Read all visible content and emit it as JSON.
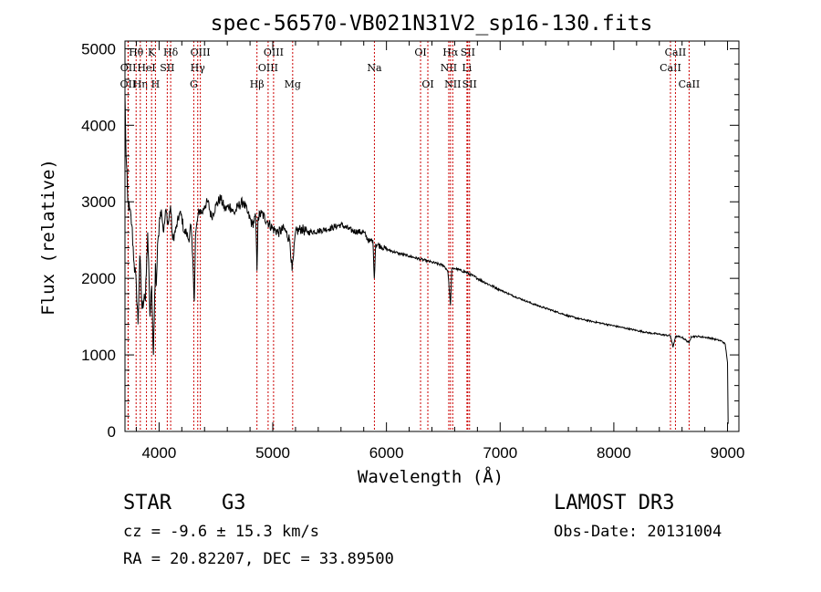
{
  "colors": {
    "line": "#000000",
    "marker": "#cc0000",
    "background": "#ffffff"
  },
  "chart_data": {
    "type": "line",
    "title": "spec-56570-VB021N31V2_sp16-130.fits",
    "xlabel": "Wavelength (Å)",
    "ylabel": "Flux (relative)",
    "xlim": [
      3700,
      9100
    ],
    "ylim": [
      0,
      5100
    ],
    "xticks": [
      4000,
      5000,
      6000,
      7000,
      8000,
      9000
    ],
    "xtick_labels": [
      "4000",
      "5000",
      "6000",
      "7000",
      "8000",
      "9000"
    ],
    "yticks": [
      0,
      1000,
      2000,
      3000,
      4000,
      5000
    ],
    "ytick_labels": [
      "0",
      "1000",
      "2000",
      "3000",
      "4000",
      "5000"
    ],
    "series": [
      {
        "name": "spectrum",
        "x": [
          3700,
          3710,
          3725,
          3740,
          3760,
          3780,
          3800,
          3815,
          3830,
          3850,
          3870,
          3880,
          3900,
          3920,
          3935,
          3950,
          3968,
          3975,
          3990,
          4005,
          4020,
          4040,
          4060,
          4080,
          4100,
          4120,
          4150,
          4180,
          4200,
          4220,
          4240,
          4260,
          4280,
          4300,
          4310,
          4320,
          4340,
          4360,
          4380,
          4400,
          4430,
          4460,
          4500,
          4540,
          4580,
          4620,
          4660,
          4700,
          4740,
          4780,
          4820,
          4850,
          4861,
          4870,
          4900,
          4950,
          5000,
          5050,
          5100,
          5150,
          5170,
          5183,
          5200,
          5250,
          5300,
          5400,
          5500,
          5600,
          5700,
          5800,
          5850,
          5880,
          5893,
          5905,
          5950,
          6000,
          6100,
          6200,
          6300,
          6400,
          6500,
          6540,
          6563,
          6575,
          6600,
          6700,
          6800,
          6900,
          7000,
          7100,
          7200,
          7300,
          7400,
          7500,
          7600,
          7700,
          7800,
          7900,
          8000,
          8100,
          8200,
          8300,
          8400,
          8498,
          8520,
          8542,
          8560,
          8600,
          8662,
          8680,
          8750,
          8800,
          8850,
          8900,
          8950,
          8980,
          9000,
          9005
        ],
        "y": [
          4400,
          3600,
          3000,
          2900,
          2700,
          2200,
          1900,
          1400,
          2300,
          1600,
          1800,
          1700,
          2600,
          1500,
          1900,
          1000,
          2200,
          1900,
          2500,
          2800,
          2900,
          2600,
          2900,
          2700,
          2950,
          2500,
          2650,
          2850,
          2800,
          2600,
          2600,
          2500,
          2700,
          2100,
          1700,
          2550,
          2800,
          2900,
          2850,
          2950,
          3000,
          2800,
          2950,
          3050,
          2900,
          2950,
          2850,
          2950,
          3000,
          2850,
          2700,
          2800,
          2100,
          2800,
          2850,
          2750,
          2650,
          2600,
          2650,
          2500,
          2100,
          2300,
          2600,
          2650,
          2600,
          2620,
          2650,
          2700,
          2620,
          2600,
          2480,
          2500,
          2000,
          2450,
          2420,
          2380,
          2330,
          2290,
          2250,
          2210,
          2170,
          2100,
          1650,
          2120,
          2130,
          2080,
          2000,
          1920,
          1850,
          1780,
          1720,
          1660,
          1610,
          1560,
          1510,
          1470,
          1440,
          1410,
          1380,
          1350,
          1320,
          1290,
          1270,
          1250,
          1100,
          1240,
          1240,
          1230,
          1160,
          1240,
          1240,
          1230,
          1220,
          1200,
          1180,
          1140,
          900,
          100
        ]
      }
    ],
    "line_markers": [
      {
        "label": "OII",
        "wavelength": 3727,
        "row": 2
      },
      {
        "label": "OII",
        "wavelength": 3729,
        "row": 1
      },
      {
        "label": "Hθ",
        "wavelength": 3798,
        "row": 0
      },
      {
        "label": "Hη",
        "wavelength": 3835,
        "row": 2
      },
      {
        "label": "HeI",
        "wavelength": 3889,
        "row": 1
      },
      {
        "label": "K",
        "wavelength": 3934,
        "row": 0
      },
      {
        "label": "H",
        "wavelength": 3968,
        "row": 2
      },
      {
        "label": "SII",
        "wavelength": 4072,
        "row": 1
      },
      {
        "label": "Hδ",
        "wavelength": 4102,
        "row": 0
      },
      {
        "label": "G",
        "wavelength": 4305,
        "row": 2
      },
      {
        "label": "Hγ",
        "wavelength": 4340,
        "row": 1
      },
      {
        "label": "OIII",
        "wavelength": 4363,
        "row": 0
      },
      {
        "label": "Hβ",
        "wavelength": 4861,
        "row": 2
      },
      {
        "label": "OIII",
        "wavelength": 4959,
        "row": 1
      },
      {
        "label": "OIII",
        "wavelength": 5007,
        "row": 0
      },
      {
        "label": "Mg",
        "wavelength": 5175,
        "row": 2
      },
      {
        "label": "Na",
        "wavelength": 5894,
        "row": 1
      },
      {
        "label": "OI",
        "wavelength": 6300,
        "row": 0
      },
      {
        "label": "OI",
        "wavelength": 6364,
        "row": 2
      },
      {
        "label": "NII",
        "wavelength": 6548,
        "row": 1
      },
      {
        "label": "Hα",
        "wavelength": 6563,
        "row": 0
      },
      {
        "label": "NII",
        "wavelength": 6583,
        "row": 2
      },
      {
        "label": "Li",
        "wavelength": 6708,
        "row": 1
      },
      {
        "label": "SII",
        "wavelength": 6716,
        "row": 0
      },
      {
        "label": "SII",
        "wavelength": 6731,
        "row": 2
      },
      {
        "label": "CaII",
        "wavelength": 8498,
        "row": 1
      },
      {
        "label": "CaII",
        "wavelength": 8542,
        "row": 0
      },
      {
        "label": "CaII",
        "wavelength": 8662,
        "row": 2
      }
    ]
  },
  "info": {
    "class_label": "STAR",
    "subclass": "G3",
    "survey": "LAMOST DR3",
    "cz": "cz = -9.6 ± 15.3 km/s",
    "obs_date": "Obs-Date: 20131004",
    "coords": "RA =  20.82207, DEC =  33.89500"
  }
}
